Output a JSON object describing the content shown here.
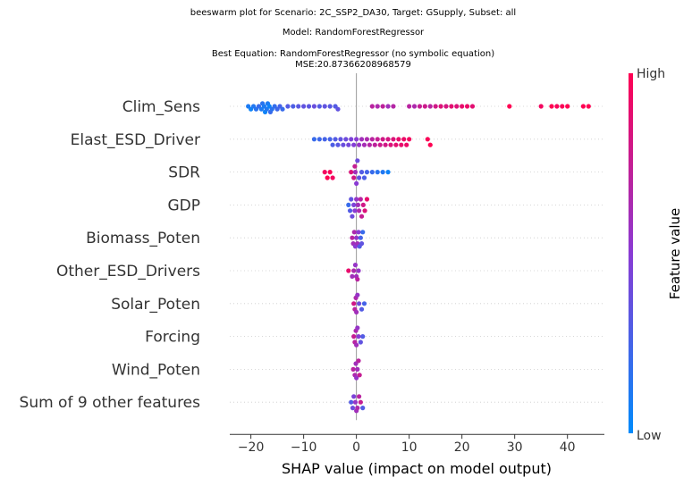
{
  "title_lines": [
    "beeswarm plot for Scenario: 2C_SSP2_DA30, Target: GSupply, Subset: all",
    "Model: RandomForestRegressor",
    "Best Equation: RandomForestRegressor (no symbolic equation)",
    "MSE:20.87366208968579"
  ],
  "chart_data": {
    "type": "scatter",
    "subtype": "beeswarm",
    "xlabel": "SHAP value (impact on model output)",
    "xlim": [
      -24,
      47
    ],
    "xticks": [
      -20,
      -10,
      0,
      10,
      20,
      30,
      40
    ],
    "grid": false,
    "colorbar": {
      "label": "Feature value",
      "high_label": "High",
      "low_label": "Low",
      "high_color": "#ff0052",
      "low_color": "#008bfb"
    },
    "features": [
      {
        "name": "Clim_Sens",
        "points": [
          [
            -20.5,
            0.1
          ],
          [
            -20,
            0.05
          ],
          [
            -19.5,
            0.12
          ],
          [
            -19,
            0.15
          ],
          [
            -18.5,
            0.2
          ],
          [
            -18,
            0.1
          ],
          [
            -17.8,
            0.15
          ],
          [
            -17.5,
            0.1
          ],
          [
            -17.3,
            0.05
          ],
          [
            -17,
            0.12
          ],
          [
            -16.8,
            0.1
          ],
          [
            -16.5,
            0.05
          ],
          [
            -16.3,
            0.2
          ],
          [
            -16,
            0.15
          ],
          [
            -15.5,
            0.18
          ],
          [
            -15,
            0.22
          ],
          [
            -14.5,
            0.25
          ],
          [
            -14,
            0.2
          ],
          [
            -13,
            0.3
          ],
          [
            -12,
            0.28
          ],
          [
            -11,
            0.32
          ],
          [
            -10,
            0.35
          ],
          [
            -9,
            0.33
          ],
          [
            -8,
            0.38
          ],
          [
            -7,
            0.3
          ],
          [
            -6,
            0.35
          ],
          [
            -5,
            0.32
          ],
          [
            -4,
            0.3
          ],
          [
            -3.5,
            0.35
          ],
          [
            3,
            0.7
          ],
          [
            4,
            0.65
          ],
          [
            5,
            0.72
          ],
          [
            6,
            0.6
          ],
          [
            7,
            0.68
          ],
          [
            10,
            0.7
          ],
          [
            11,
            0.65
          ],
          [
            12,
            0.75
          ],
          [
            13,
            0.78
          ],
          [
            14,
            0.7
          ],
          [
            15,
            0.8
          ],
          [
            16,
            0.85
          ],
          [
            17,
            0.82
          ],
          [
            18,
            0.88
          ],
          [
            19,
            0.85
          ],
          [
            20,
            0.9
          ],
          [
            21,
            0.92
          ],
          [
            22,
            0.88
          ],
          [
            29,
            1.0
          ],
          [
            35,
            0.95
          ],
          [
            37,
            1.0
          ],
          [
            38,
            0.97
          ],
          [
            39,
            0.98
          ],
          [
            40,
            1.0
          ],
          [
            43,
            1.0
          ],
          [
            44,
            1.0
          ]
        ]
      },
      {
        "name": "Elast_ESD_Driver",
        "points": [
          [
            -8,
            0.2
          ],
          [
            -7,
            0.22
          ],
          [
            -6,
            0.25
          ],
          [
            -5,
            0.25
          ],
          [
            -4.5,
            0.28
          ],
          [
            -4,
            0.3
          ],
          [
            -3.5,
            0.32
          ],
          [
            -3,
            0.35
          ],
          [
            -2.5,
            0.38
          ],
          [
            -2,
            0.4
          ],
          [
            -1.5,
            0.42
          ],
          [
            -1,
            0.45
          ],
          [
            -0.5,
            0.48
          ],
          [
            0,
            0.5
          ],
          [
            0.5,
            0.55
          ],
          [
            1,
            0.6
          ],
          [
            1.5,
            0.62
          ],
          [
            2,
            0.65
          ],
          [
            2.5,
            0.68
          ],
          [
            3,
            0.7
          ],
          [
            3.5,
            0.72
          ],
          [
            4,
            0.75
          ],
          [
            4.5,
            0.78
          ],
          [
            5,
            0.8
          ],
          [
            5.5,
            0.8
          ],
          [
            6,
            0.82
          ],
          [
            6.5,
            0.85
          ],
          [
            7,
            0.85
          ],
          [
            7.5,
            0.88
          ],
          [
            8,
            0.9
          ],
          [
            8.5,
            0.9
          ],
          [
            9,
            0.92
          ],
          [
            9.5,
            0.92
          ],
          [
            10,
            0.95
          ],
          [
            13.5,
            0.98
          ],
          [
            14,
            1.0
          ]
        ]
      },
      {
        "name": "SDR",
        "points": [
          [
            -6,
            0.95
          ],
          [
            -5.5,
            1.0
          ],
          [
            -5,
            0.98
          ],
          [
            -4.5,
            0.95
          ],
          [
            -1,
            0.85
          ],
          [
            -0.5,
            0.8
          ],
          [
            -0.3,
            0.75
          ],
          [
            -0.2,
            0.6
          ],
          [
            0,
            0.5
          ],
          [
            0.2,
            0.4
          ],
          [
            0.5,
            0.35
          ],
          [
            1,
            0.3
          ],
          [
            1.5,
            0.28
          ],
          [
            2,
            0.25
          ],
          [
            3,
            0.2
          ],
          [
            4,
            0.15
          ],
          [
            5,
            0.12
          ],
          [
            6,
            0.05
          ]
        ]
      },
      {
        "name": "GDP",
        "points": [
          [
            -1.5,
            0.2
          ],
          [
            -1.2,
            0.3
          ],
          [
            -1,
            0.35
          ],
          [
            -0.8,
            0.4
          ],
          [
            -0.5,
            0.45
          ],
          [
            -0.3,
            0.5
          ],
          [
            0,
            0.55
          ],
          [
            0.3,
            0.6
          ],
          [
            0.5,
            0.65
          ],
          [
            0.8,
            0.7
          ],
          [
            1,
            0.75
          ],
          [
            1.3,
            0.8
          ],
          [
            1.6,
            0.85
          ],
          [
            2,
            0.9
          ]
        ]
      },
      {
        "name": "Biomass_Poten",
        "points": [
          [
            -0.8,
            0.7
          ],
          [
            -0.6,
            0.6
          ],
          [
            -0.4,
            0.65
          ],
          [
            -0.2,
            0.5
          ],
          [
            0,
            0.55
          ],
          [
            0.2,
            0.6
          ],
          [
            0.4,
            0.5
          ],
          [
            0.6,
            0.3
          ],
          [
            0.8,
            0.25
          ],
          [
            1,
            0.35
          ],
          [
            1.2,
            0.2
          ]
        ]
      },
      {
        "name": "Other_ESD_Drivers",
        "points": [
          [
            -1.5,
            0.9
          ],
          [
            -0.8,
            0.6
          ],
          [
            -0.5,
            0.65
          ],
          [
            -0.2,
            0.55
          ],
          [
            0,
            0.6
          ],
          [
            0.2,
            0.7
          ],
          [
            0.4,
            0.55
          ]
        ]
      },
      {
        "name": "Solar_Poten",
        "points": [
          [
            -0.5,
            0.8
          ],
          [
            -0.3,
            0.7
          ],
          [
            -0.1,
            0.65
          ],
          [
            0,
            0.6
          ],
          [
            0.2,
            0.55
          ],
          [
            0.5,
            0.4
          ],
          [
            1,
            0.3
          ],
          [
            1.5,
            0.25
          ]
        ]
      },
      {
        "name": "Forcing",
        "points": [
          [
            -0.5,
            0.75
          ],
          [
            -0.3,
            0.7
          ],
          [
            -0.1,
            0.65
          ],
          [
            0,
            0.6
          ],
          [
            0.2,
            0.55
          ],
          [
            0.4,
            0.5
          ],
          [
            0.8,
            0.35
          ],
          [
            1.2,
            0.3
          ]
        ]
      },
      {
        "name": "Wind_Poten",
        "points": [
          [
            -0.6,
            0.7
          ],
          [
            -0.3,
            0.65
          ],
          [
            -0.1,
            0.6
          ],
          [
            0,
            0.55
          ],
          [
            0.2,
            0.6
          ],
          [
            0.4,
            0.7
          ],
          [
            0.6,
            0.75
          ]
        ]
      },
      {
        "name": "Sum of 9 other features",
        "points": [
          [
            -1,
            0.3
          ],
          [
            -0.7,
            0.4
          ],
          [
            -0.5,
            0.45
          ],
          [
            -0.2,
            0.55
          ],
          [
            0,
            0.6
          ],
          [
            0.2,
            0.65
          ],
          [
            0.5,
            0.7
          ],
          [
            0.8,
            0.75
          ],
          [
            1.2,
            0.3
          ]
        ]
      }
    ]
  }
}
